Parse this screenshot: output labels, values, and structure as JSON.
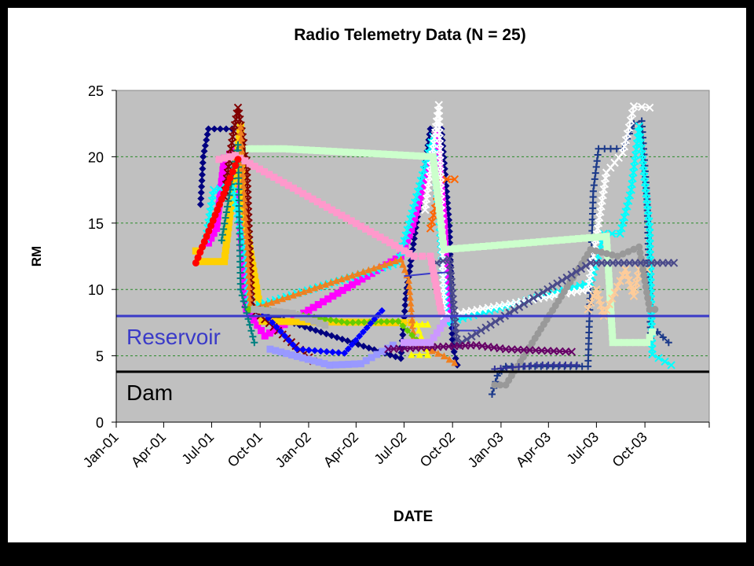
{
  "chart_data": {
    "type": "line",
    "title": "Radio Telemetry Data (N = 25)",
    "xlabel": "DATE",
    "ylabel": "RM",
    "ylim": [
      0,
      25
    ],
    "y_ticks": [
      "0",
      "5",
      "10",
      "15",
      "20",
      "25"
    ],
    "xlim": [
      "2001-01-01",
      "2004-01-31"
    ],
    "x_ticks": [
      {
        "date": "2001-01-01",
        "label": "Jan-01"
      },
      {
        "date": "2001-04-01",
        "label": "Apr-01"
      },
      {
        "date": "2001-07-01",
        "label": "Jul-01"
      },
      {
        "date": "2001-10-01",
        "label": "Oct-01"
      },
      {
        "date": "2002-01-01",
        "label": "Jan-02"
      },
      {
        "date": "2002-04-01",
        "label": "Apr-02"
      },
      {
        "date": "2002-07-01",
        "label": "Jul-02"
      },
      {
        "date": "2002-10-01",
        "label": "Oct-02"
      },
      {
        "date": "2003-01-01",
        "label": "Jan-03"
      },
      {
        "date": "2003-04-01",
        "label": "Apr-03"
      },
      {
        "date": "2003-07-01",
        "label": "Jul-03"
      },
      {
        "date": "2003-10-01",
        "label": "Oct-03"
      }
    ],
    "grid": true,
    "reference_lines": [
      {
        "label": "Reservoir",
        "y": 8.0,
        "color": "#3a3ac8"
      },
      {
        "label": "Dam",
        "y": 3.8,
        "color": "#000000"
      }
    ],
    "series": [
      {
        "color": "#000080",
        "marker": "diamond",
        "points": [
          [
            "2001-06-10",
            16.4
          ],
          [
            "2001-06-15",
            20.0
          ],
          [
            "2001-06-25",
            22.1
          ],
          [
            "2001-08-20",
            22.1
          ],
          [
            "2001-09-02",
            8.7
          ],
          [
            "2001-09-08",
            11.5
          ],
          [
            "2001-09-15",
            8.5
          ],
          [
            "2002-06-25",
            4.8
          ],
          [
            "2002-07-05",
            9.7
          ],
          [
            "2002-08-20",
            22.1
          ],
          [
            "2002-09-10",
            22.1
          ],
          [
            "2002-09-25",
            14.8
          ],
          [
            "2002-10-01",
            5.8
          ],
          [
            "2002-10-10",
            4.3
          ]
        ]
      },
      {
        "color": "#1c3a8a",
        "marker": "plus",
        "points": [
          [
            "2002-12-15",
            2.1
          ],
          [
            "2002-12-25",
            3.5
          ],
          [
            "2003-01-10",
            4.2
          ],
          [
            "2003-06-15",
            4.2
          ],
          [
            "2003-06-25",
            17.4
          ],
          [
            "2003-07-05",
            20.6
          ],
          [
            "2003-08-20",
            20.6
          ],
          [
            "2003-09-10",
            22.5
          ],
          [
            "2003-09-25",
            22.7
          ],
          [
            "2003-10-05",
            16.8
          ],
          [
            "2003-10-12",
            6.3
          ],
          [
            "2003-10-25",
            6.8
          ],
          [
            "2003-11-15",
            6.0
          ]
        ]
      },
      {
        "color": "#ff00ff",
        "marker": "square",
        "points": [
          [
            "2001-06-25",
            13.5
          ],
          [
            "2001-07-10",
            14.6
          ],
          [
            "2001-07-25",
            19.9
          ],
          [
            "2001-08-15",
            20.5
          ],
          [
            "2001-09-05",
            8.5
          ],
          [
            "2001-10-10",
            6.5
          ],
          [
            "2002-06-25",
            12.5
          ],
          [
            "2002-07-15",
            14.5
          ],
          [
            "2002-08-10",
            18.4
          ],
          [
            "2002-09-01",
            21.6
          ],
          [
            "2002-09-15",
            15.0
          ],
          [
            "2002-09-22",
            8.2
          ]
        ]
      },
      {
        "color": "#ffd000",
        "marker": "square",
        "points": [
          [
            "2001-06-01",
            12.9
          ],
          [
            "2001-06-05",
            12.1
          ],
          [
            "2001-07-25",
            12.1
          ],
          [
            "2001-08-25",
            22.3
          ],
          [
            "2001-08-30",
            16.0
          ],
          [
            "2001-10-05",
            7.6
          ],
          [
            "2002-06-15",
            7.5
          ],
          [
            "2002-07-15",
            7.5
          ]
        ]
      },
      {
        "color": "#00ffff",
        "marker": "x",
        "points": [
          [
            "2001-06-20",
            13.8
          ],
          [
            "2001-07-05",
            17.5
          ],
          [
            "2001-08-10",
            17.8
          ],
          [
            "2001-09-05",
            12.0
          ],
          [
            "2001-09-10",
            8.6
          ],
          [
            "2002-06-20",
            12.0
          ],
          [
            "2002-08-25",
            21.5
          ],
          [
            "2002-09-20",
            7.5
          ],
          [
            "2003-06-20",
            10.5
          ],
          [
            "2003-07-15",
            14.2
          ],
          [
            "2003-08-15",
            14.2
          ],
          [
            "2003-09-05",
            17.5
          ],
          [
            "2003-09-20",
            22.3
          ],
          [
            "2003-10-10",
            14.7
          ],
          [
            "2003-10-15",
            5.1
          ],
          [
            "2003-11-20",
            4.3
          ]
        ]
      },
      {
        "color": "#800000",
        "marker": "x",
        "points": [
          [
            "2001-07-25",
            17.0
          ],
          [
            "2001-08-10",
            21.5
          ],
          [
            "2001-08-20",
            23.7
          ],
          [
            "2001-09-05",
            19.7
          ],
          [
            "2001-09-15",
            8.6
          ],
          [
            "2002-01-10",
            4.6
          ]
        ]
      },
      {
        "color": "#f08020",
        "marker": "triangle",
        "points": [
          [
            "2001-08-25",
            22.3
          ],
          [
            "2001-08-30",
            17.8
          ],
          [
            "2001-09-05",
            14.5
          ],
          [
            "2001-09-12",
            8.5
          ],
          [
            "2002-06-25",
            12.3
          ],
          [
            "2002-07-10",
            10.7
          ],
          [
            "2002-07-20",
            6.0
          ],
          [
            "2002-09-15",
            5.0
          ],
          [
            "2002-10-05",
            4.5
          ]
        ]
      },
      {
        "color": "#ff6600",
        "marker": "x",
        "points": [
          [
            "2002-08-20",
            14.6
          ],
          [
            "2002-09-01",
            16.6
          ],
          [
            "2002-09-05",
            18.4
          ],
          [
            "2002-09-20",
            18.3
          ],
          [
            "2002-10-05",
            18.3
          ]
        ]
      },
      {
        "color": "#ffffff",
        "marker": "x",
        "points": [
          [
            "2002-08-10",
            16.0
          ],
          [
            "2002-09-05",
            23.9
          ],
          [
            "2002-09-15",
            8.0
          ],
          [
            "2003-06-15",
            10.0
          ],
          [
            "2003-07-05",
            15.0
          ],
          [
            "2003-07-20",
            18.8
          ],
          [
            "2003-08-20",
            20.3
          ],
          [
            "2003-09-01",
            22.2
          ],
          [
            "2003-09-10",
            23.8
          ],
          [
            "2003-10-10",
            23.7
          ]
        ]
      },
      {
        "color": "#3a3ac8",
        "marker": "none",
        "points": [
          [
            "2002-07-01",
            11.0
          ],
          [
            "2002-08-20",
            11.2
          ],
          [
            "2002-09-25",
            11.3
          ],
          [
            "2002-10-01",
            6.9
          ],
          [
            "2002-11-20",
            6.9
          ]
        ]
      },
      {
        "color": "#ccffcc",
        "marker": "square",
        "points": [
          [
            "2001-09-10",
            20.6
          ],
          [
            "2001-11-15",
            20.6
          ],
          [
            "2002-08-25",
            20.0
          ],
          [
            "2002-09-15",
            13.0
          ],
          [
            "2003-07-20",
            14.0
          ],
          [
            "2003-08-01",
            6.0
          ],
          [
            "2003-10-05",
            6.0
          ],
          [
            "2003-10-15",
            6.8
          ]
        ]
      },
      {
        "color": "#ffcc99",
        "marker": "x",
        "points": [
          [
            "2003-06-15",
            8.5
          ],
          [
            "2003-07-01",
            10.0
          ],
          [
            "2003-07-15",
            8.0
          ],
          [
            "2003-08-10",
            10.2
          ],
          [
            "2003-08-25",
            11.5
          ],
          [
            "2003-09-10",
            9.5
          ],
          [
            "2003-09-20",
            11.5
          ],
          [
            "2003-10-05",
            11.5
          ]
        ]
      },
      {
        "color": "#999999",
        "marker": "circle",
        "points": [
          [
            "2002-12-20",
            2.8
          ],
          [
            "2003-01-10",
            2.8
          ],
          [
            "2003-06-20",
            13.0
          ],
          [
            "2003-08-10",
            12.5
          ],
          [
            "2003-09-20",
            13.2
          ],
          [
            "2003-10-10",
            8.5
          ],
          [
            "2003-10-20",
            8.5
          ]
        ]
      },
      {
        "color": "#4a4a8a",
        "marker": "x",
        "points": [
          [
            "2002-09-01",
            12.0
          ],
          [
            "2002-09-25",
            12.3
          ],
          [
            "2002-10-10",
            5.8
          ],
          [
            "2003-06-20",
            12.0
          ],
          [
            "2003-11-25",
            12.0
          ]
        ]
      },
      {
        "color": "#008080",
        "marker": "plus",
        "points": [
          [
            "2001-07-20",
            13.7
          ],
          [
            "2001-08-20",
            20.9
          ],
          [
            "2001-08-25",
            10.0
          ],
          [
            "2001-09-20",
            6.0
          ]
        ]
      },
      {
        "color": "#ff99cc",
        "marker": "square",
        "points": [
          [
            "2001-07-15",
            19.8
          ],
          [
            "2001-08-15",
            20.1
          ],
          [
            "2002-07-20",
            12.5
          ],
          [
            "2002-08-20",
            12.5
          ],
          [
            "2002-09-10",
            8.2
          ]
        ]
      },
      {
        "color": "#9999ff",
        "marker": "square",
        "points": [
          [
            "2001-10-20",
            5.5
          ],
          [
            "2002-02-10",
            4.3
          ],
          [
            "2002-04-10",
            4.4
          ],
          [
            "2002-06-10",
            5.8
          ]
        ]
      },
      {
        "color": "#ffff00",
        "marker": "triangle",
        "points": [
          [
            "2002-07-15",
            5.1
          ],
          [
            "2002-08-15",
            5.1
          ],
          [
            "2002-07-25",
            7.4
          ],
          [
            "2002-08-15",
            7.4
          ]
        ]
      },
      {
        "color": "#66cc00",
        "marker": "diamond",
        "points": [
          [
            "2001-09-10",
            8.5
          ],
          [
            "2001-10-10",
            8.5
          ],
          [
            "2002-03-15",
            7.5
          ],
          [
            "2002-06-20",
            7.6
          ],
          [
            "2002-07-25",
            6.2
          ]
        ]
      },
      {
        "color": "#660066",
        "marker": "x",
        "points": [
          [
            "2002-06-01",
            5.5
          ],
          [
            "2002-11-15",
            5.8
          ],
          [
            "2003-01-10",
            5.5
          ],
          [
            "2003-05-15",
            5.3
          ]
        ]
      },
      {
        "color": "#ff0000",
        "marker": "circle",
        "points": [
          [
            "2001-06-01",
            12.0
          ],
          [
            "2001-07-20",
            16.8
          ],
          [
            "2001-08-05",
            18.4
          ],
          [
            "2001-08-20",
            19.8
          ]
        ]
      },
      {
        "color": "#0000ff",
        "marker": "diamond",
        "points": [
          [
            "2001-10-01",
            8.5
          ],
          [
            "2001-12-10",
            5.5
          ],
          [
            "2002-03-10",
            5.2
          ],
          [
            "2002-05-20",
            8.4
          ]
        ]
      },
      {
        "color": "#cc99ff",
        "marker": "square",
        "points": [
          [
            "2002-07-01",
            6.0
          ],
          [
            "2002-08-20",
            6.0
          ],
          [
            "2002-09-20",
            7.8
          ]
        ]
      },
      {
        "color": "#b0b0b0",
        "marker": "square",
        "points": [
          [
            "2001-09-20",
            8.5
          ],
          [
            "2001-12-01",
            8.2
          ],
          [
            "2002-02-01",
            7.3
          ]
        ]
      },
      {
        "color": "#333399",
        "marker": "plus",
        "points": [
          [
            "2002-12-20",
            4.0
          ],
          [
            "2003-03-10",
            4.3
          ],
          [
            "2003-05-25",
            4.3
          ]
        ]
      }
    ]
  }
}
